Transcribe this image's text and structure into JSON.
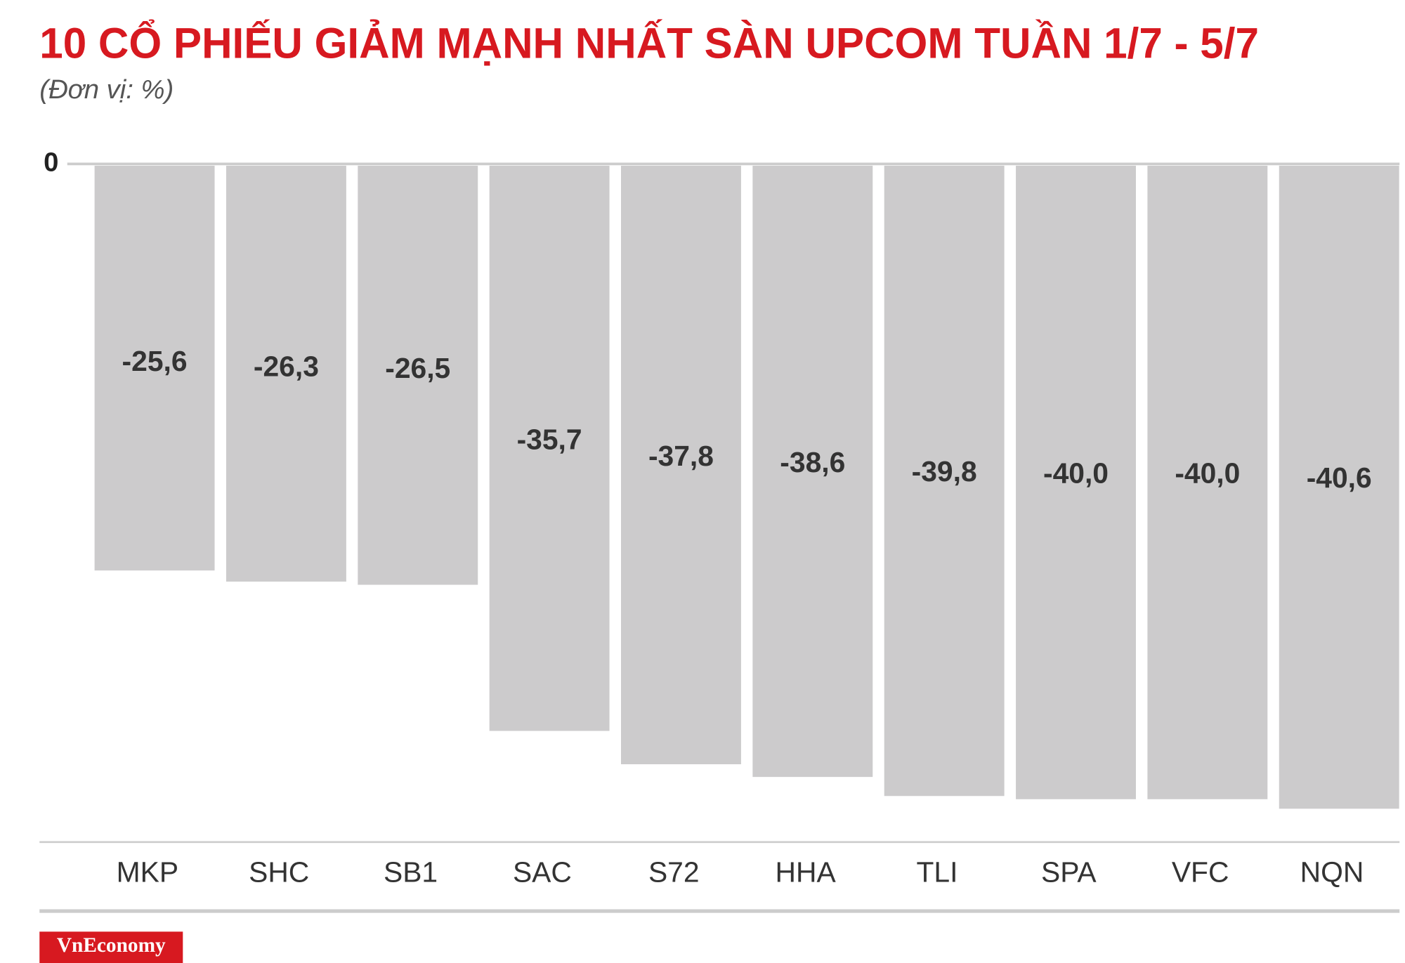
{
  "chart_data": {
    "type": "bar",
    "title": "10 CỔ PHIẾU GIẢM MẠNH NHẤT SÀN UPCOM TUẦN 1/7 - 5/7",
    "subtitle": "(Đơn vị: %)",
    "categories": [
      "MKP",
      "SHC",
      "SB1",
      "SAC",
      "S72",
      "HHA",
      "TLI",
      "SPA",
      "VFC",
      "NQN"
    ],
    "values": [
      -25.6,
      -26.3,
      -26.5,
      -35.7,
      -37.8,
      -38.6,
      -39.8,
      -40.0,
      -40.0,
      -40.6
    ],
    "value_labels": [
      "-25,6",
      "-26,3",
      "-26,5",
      "-35,7",
      "-37,8",
      "-38,6",
      "-39,8",
      "-40,0",
      "-40,0",
      "-40,6"
    ],
    "color": "#cccbcc",
    "ylim": [
      -42.7,
      0
    ],
    "yticks": [
      0
    ]
  },
  "brand": "VnEconomy"
}
